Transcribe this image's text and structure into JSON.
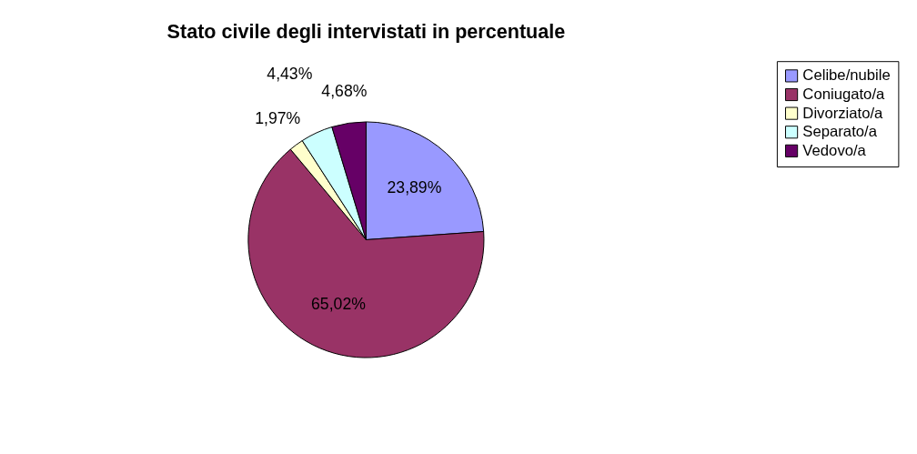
{
  "chart_data": {
    "type": "pie",
    "title": "Stato civile degli intervistati in percentuale",
    "categories": [
      "Celibe/nubile",
      "Coniugato/a",
      "Divorziato/a",
      "Separato/a",
      "Vedovo/a"
    ],
    "values": [
      23.89,
      65.02,
      1.97,
      4.43,
      4.68
    ],
    "colors": [
      "#9999ff",
      "#993366",
      "#ffffcc",
      "#ccffff",
      "#660066"
    ],
    "value_labels": [
      "23,89%",
      "65,02%",
      "1,97%",
      "4,43%",
      "4,68%"
    ],
    "legend": "right"
  }
}
